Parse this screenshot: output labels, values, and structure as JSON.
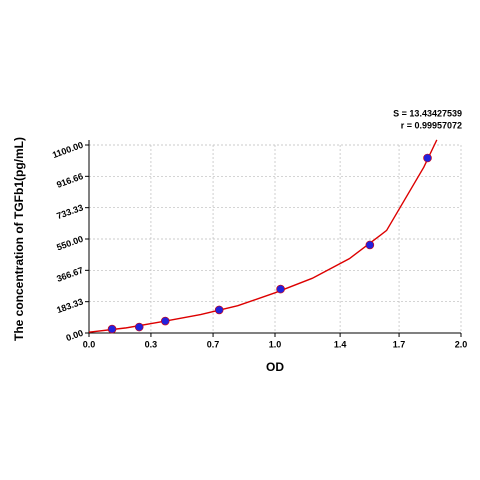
{
  "chart_data": {
    "type": "scatter",
    "xlabel": "OD",
    "ylabel": "The concentration of TGFb1(pg/mL)",
    "annotations": [
      "S = 13.43427539",
      "r = 0.99957072"
    ],
    "x": [
      0.124,
      0.27,
      0.41,
      0.7,
      1.03,
      1.51,
      1.82
    ],
    "values": [
      23,
      35,
      70,
      135,
      257,
      515,
      1024
    ],
    "color": "#2222dd",
    "fit": {
      "color": "#dd0000",
      "x": [
        0,
        0.2,
        0.4,
        0.6,
        0.8,
        1.0,
        1.2,
        1.4,
        1.6,
        1.8,
        1.87
      ],
      "values": [
        5,
        30,
        68,
        108,
        160,
        235,
        320,
        435,
        600,
        970,
        1130
      ]
    },
    "xlim": [
      0,
      2.0
    ],
    "xticks": [
      {
        "value": 0,
        "label": "0.0"
      },
      {
        "value": 0.333,
        "label": "0.3"
      },
      {
        "value": 0.667,
        "label": "0.7"
      },
      {
        "value": 1,
        "label": "1.0"
      },
      {
        "value": 1.35,
        "label": "1.4"
      },
      {
        "value": 1.667,
        "label": "1.7"
      },
      {
        "value": 2,
        "label": "2.0"
      }
    ],
    "ylim": [
      0,
      1100
    ],
    "yticks": [
      {
        "value": 0,
        "label": "0.00"
      },
      {
        "value": 183.33,
        "label": "183.33"
      },
      {
        "value": 366.67,
        "label": "366.67"
      },
      {
        "value": 550,
        "label": "550.00"
      },
      {
        "value": 733.33,
        "label": "733.33"
      },
      {
        "value": 916.66,
        "label": "916.66"
      },
      {
        "value": 1100,
        "label": "1100.00"
      }
    ],
    "grid": true
  }
}
